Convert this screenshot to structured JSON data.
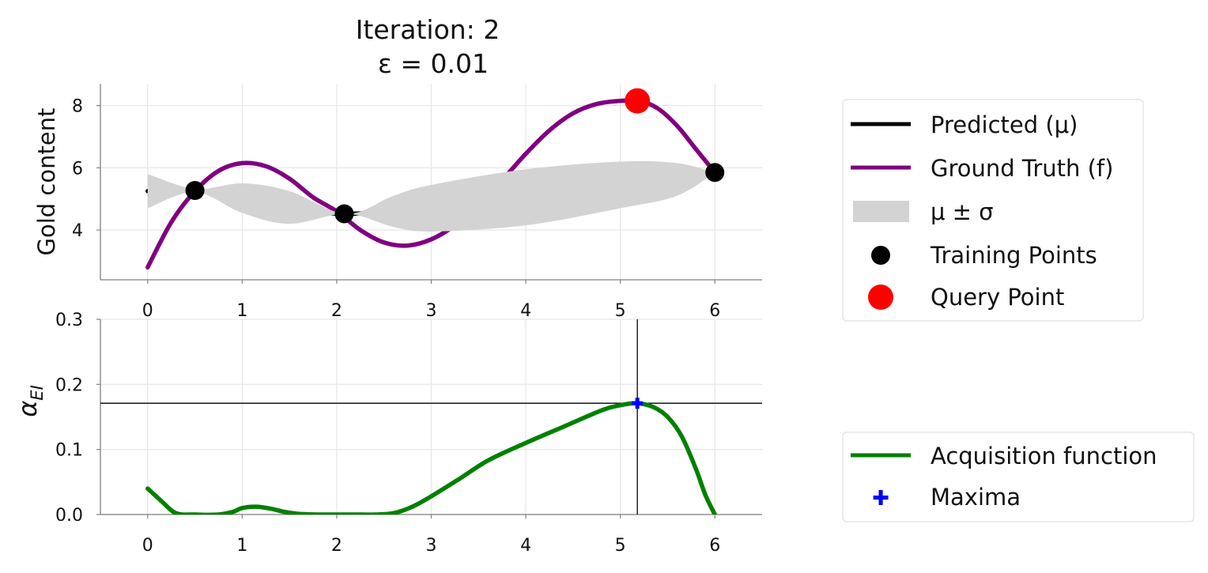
{
  "title": {
    "line1": "Iteration: 2",
    "line2": "ε = 0.01"
  },
  "chart_data": [
    {
      "type": "line",
      "ylabel": "Gold content",
      "xlim": [
        -0.5,
        6.5
      ],
      "ylim": [
        2.4,
        8.7
      ],
      "xticks": [
        0,
        1,
        2,
        3,
        4,
        5,
        6
      ],
      "yticks": [
        4,
        6,
        8
      ],
      "grid": true,
      "legend_position": "right",
      "series": [
        {
          "name": "Predicted (μ)",
          "color": "#000000",
          "x": [
            0,
            0.5,
            1,
            1.5,
            2.1,
            3,
            4,
            5,
            6
          ],
          "y": [
            5.25,
            5.27,
            5.02,
            4.72,
            4.52,
            4.72,
            5.05,
            5.45,
            5.85
          ]
        },
        {
          "name": "Ground Truth (f)",
          "color": "#800080",
          "x": [
            0,
            0.25,
            0.5,
            0.75,
            1.0,
            1.25,
            1.5,
            1.75,
            2.0,
            2.25,
            2.5,
            2.75,
            3.0,
            3.25,
            3.5,
            3.75,
            4.0,
            4.25,
            4.5,
            4.75,
            5.0,
            5.2,
            5.4,
            5.6,
            5.8,
            6.0
          ],
          "y": [
            2.8,
            4.25,
            5.25,
            5.9,
            6.15,
            6.05,
            5.65,
            5.05,
            4.6,
            4.0,
            3.6,
            3.5,
            3.7,
            4.15,
            4.8,
            5.6,
            6.45,
            7.2,
            7.75,
            8.05,
            8.15,
            8.15,
            7.9,
            7.35,
            6.6,
            5.85
          ]
        },
        {
          "name": "μ ± σ",
          "color": "#d3d3d3",
          "x": [
            0,
            0.5,
            1,
            1.5,
            2.1,
            2.6,
            3,
            4,
            5,
            5.6,
            6
          ],
          "upper": [
            5.8,
            5.32,
            5.5,
            5.25,
            4.52,
            5.1,
            5.45,
            5.95,
            6.2,
            6.15,
            5.85
          ],
          "lower": [
            4.7,
            5.22,
            4.55,
            4.2,
            4.52,
            4.1,
            3.95,
            4.15,
            4.7,
            5.1,
            5.85
          ]
        },
        {
          "name": "Training Points",
          "color": "#000000",
          "marker": "circle",
          "x": [
            0.5,
            2.08,
            6.0
          ],
          "y": [
            5.27,
            4.52,
            5.85
          ]
        },
        {
          "name": "Query Point",
          "color": "#ff0000",
          "marker": "circle",
          "x": [
            5.18
          ],
          "y": [
            8.15
          ]
        }
      ]
    },
    {
      "type": "line",
      "ylabel": "αEI",
      "xlim": [
        -0.5,
        6.5
      ],
      "ylim": [
        0.0,
        0.3
      ],
      "xticks": [
        0,
        1,
        2,
        3,
        4,
        5,
        6
      ],
      "yticks": [
        "0.0",
        "0.1",
        "0.2",
        "0.3"
      ],
      "grid": true,
      "legend_position": "right",
      "crosshair": {
        "x": 5.18,
        "y": 0.171
      },
      "series": [
        {
          "name": "Acquisition function",
          "color": "#008000",
          "x": [
            0,
            0.15,
            0.3,
            0.5,
            0.75,
            0.9,
            1.0,
            1.15,
            1.3,
            1.45,
            1.6,
            1.8,
            2.0,
            2.2,
            2.4,
            2.6,
            2.8,
            3.0,
            3.3,
            3.6,
            4.0,
            4.4,
            4.8,
            5.0,
            5.18,
            5.35,
            5.5,
            5.65,
            5.8,
            5.9,
            6.0
          ],
          "y": [
            0.04,
            0.02,
            0.002,
            0.0,
            0.0,
            0.004,
            0.01,
            0.012,
            0.009,
            0.004,
            0.001,
            0.0,
            0.0,
            0.0,
            0.0,
            0.002,
            0.012,
            0.028,
            0.055,
            0.083,
            0.11,
            0.135,
            0.16,
            0.168,
            0.171,
            0.165,
            0.15,
            0.12,
            0.07,
            0.03,
            0.0
          ]
        },
        {
          "name": "Maxima",
          "color": "#0000ff",
          "marker": "plus",
          "x": [
            5.18
          ],
          "y": [
            0.171
          ]
        }
      ]
    }
  ]
}
